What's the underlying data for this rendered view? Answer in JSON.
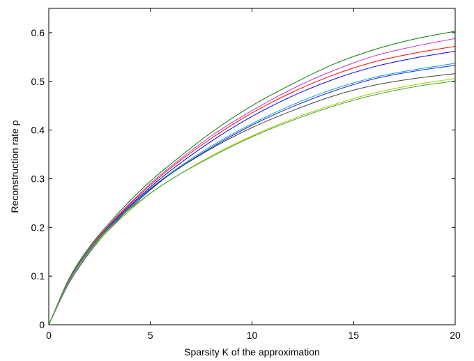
{
  "chart_data": {
    "type": "line",
    "title": "",
    "xlabel": "Sparsity K of the approximation",
    "ylabel": "Reconstruction rate ρ",
    "xlim": [
      0,
      20
    ],
    "ylim": [
      0,
      0.65
    ],
    "xticks": [
      0,
      5,
      10,
      15,
      20
    ],
    "yticks": [
      0,
      0.1,
      0.2,
      0.3,
      0.4,
      0.5,
      0.6
    ],
    "xtick_labels": [
      "0",
      "5",
      "10",
      "15",
      "20"
    ],
    "ytick_labels": [
      "0",
      "0.1",
      "0.2",
      "0.3",
      "0.4",
      "0.5",
      "0.6"
    ],
    "grid": false,
    "legend": "none",
    "x": [
      0,
      1,
      2,
      3,
      4,
      5,
      6,
      8,
      10,
      12,
      14,
      16,
      18,
      20
    ],
    "series": [
      {
        "color": "#007f00",
        "values": [
          0,
          0.095,
          0.16,
          0.21,
          0.255,
          0.295,
          0.33,
          0.395,
          0.45,
          0.495,
          0.535,
          0.565,
          0.587,
          0.603
        ]
      },
      {
        "color": "#cc33cc",
        "values": [
          0,
          0.093,
          0.158,
          0.207,
          0.25,
          0.29,
          0.325,
          0.388,
          0.44,
          0.485,
          0.522,
          0.552,
          0.572,
          0.588
        ]
      },
      {
        "color": "#ff0000",
        "values": [
          0,
          0.092,
          0.156,
          0.205,
          0.248,
          0.287,
          0.322,
          0.383,
          0.435,
          0.478,
          0.513,
          0.54,
          0.558,
          0.572
        ]
      },
      {
        "color": "#0000ff",
        "values": [
          0,
          0.09,
          0.154,
          0.203,
          0.245,
          0.283,
          0.317,
          0.377,
          0.428,
          0.47,
          0.504,
          0.53,
          0.548,
          0.562
        ]
      },
      {
        "color": "#00aaaa",
        "values": [
          0,
          0.091,
          0.155,
          0.202,
          0.243,
          0.28,
          0.312,
          0.367,
          0.413,
          0.452,
          0.484,
          0.508,
          0.524,
          0.537
        ]
      },
      {
        "color": "#1f1fff",
        "values": [
          0,
          0.086,
          0.148,
          0.197,
          0.239,
          0.277,
          0.31,
          0.364,
          0.41,
          0.448,
          0.48,
          0.505,
          0.521,
          0.533
        ]
      },
      {
        "color": "#404040",
        "values": [
          0,
          0.089,
          0.152,
          0.2,
          0.242,
          0.279,
          0.31,
          0.362,
          0.405,
          0.44,
          0.47,
          0.492,
          0.506,
          0.516
        ]
      },
      {
        "color": "#bfbf00",
        "values": [
          0,
          0.088,
          0.15,
          0.196,
          0.235,
          0.27,
          0.298,
          0.347,
          0.388,
          0.423,
          0.452,
          0.476,
          0.493,
          0.506
        ]
      },
      {
        "color": "#33aa33",
        "values": [
          0,
          0.09,
          0.153,
          0.2,
          0.238,
          0.27,
          0.298,
          0.345,
          0.386,
          0.42,
          0.449,
          0.472,
          0.489,
          0.501
        ]
      }
    ]
  }
}
